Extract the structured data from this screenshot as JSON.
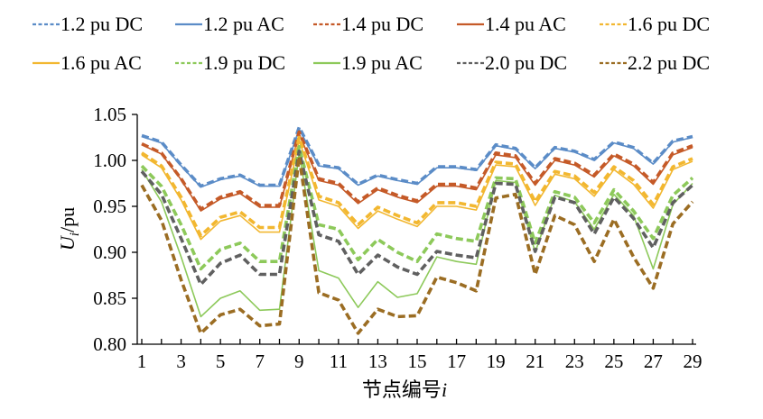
{
  "chart_data": {
    "type": "line",
    "xlabel": "节点编号i",
    "ylabel": "Ui/pu",
    "ylim": [
      0.8,
      1.05
    ],
    "xlim": [
      1,
      29
    ],
    "x": [
      1,
      2,
      3,
      4,
      5,
      6,
      7,
      8,
      9,
      10,
      11,
      12,
      13,
      14,
      15,
      16,
      17,
      18,
      19,
      20,
      21,
      22,
      23,
      24,
      25,
      26,
      27,
      28,
      29
    ],
    "xticks": [
      "1",
      "3",
      "5",
      "7",
      "9",
      "11",
      "13",
      "15",
      "17",
      "19",
      "21",
      "23",
      "25",
      "27",
      "29"
    ],
    "yticks": [
      "0.80",
      "0.85",
      "0.90",
      "0.95",
      "1.00",
      "1.05"
    ],
    "grid": false,
    "legend_position": "top",
    "series": [
      {
        "name": "1.2 pu DC",
        "style": "dashed",
        "color": "#5b8cc7",
        "values": [
          1.027,
          1.02,
          0.995,
          0.972,
          0.98,
          0.984,
          0.973,
          0.973,
          1.036,
          0.995,
          0.992,
          0.974,
          0.984,
          0.979,
          0.975,
          0.993,
          0.993,
          0.99,
          1.017,
          1.013,
          0.992,
          1.014,
          1.01,
          1.001,
          1.02,
          1.014,
          0.997,
          1.021,
          1.026
        ]
      },
      {
        "name": "1.2 pu AC",
        "style": "solid",
        "color": "#5b8cc7",
        "values": [
          1.026,
          1.019,
          0.994,
          0.971,
          0.979,
          0.983,
          0.972,
          0.972,
          1.034,
          0.994,
          0.991,
          0.973,
          0.983,
          0.978,
          0.974,
          0.992,
          0.992,
          0.989,
          1.016,
          1.012,
          0.991,
          1.013,
          1.009,
          1.0,
          1.019,
          1.013,
          0.996,
          1.02,
          1.025
        ]
      },
      {
        "name": "1.4 pu DC",
        "style": "dashed",
        "color": "#c55a28",
        "values": [
          1.018,
          1.008,
          0.98,
          0.947,
          0.96,
          0.966,
          0.951,
          0.951,
          1.031,
          0.98,
          0.975,
          0.955,
          0.97,
          0.962,
          0.956,
          0.974,
          0.974,
          0.97,
          1.008,
          1.005,
          0.975,
          1.002,
          0.997,
          0.984,
          1.007,
          0.996,
          0.976,
          1.008,
          1.016
        ]
      },
      {
        "name": "1.4 pu AC",
        "style": "solid",
        "color": "#c55a28",
        "values": [
          1.017,
          1.007,
          0.979,
          0.945,
          0.958,
          0.964,
          0.949,
          0.949,
          1.029,
          0.978,
          0.973,
          0.953,
          0.968,
          0.96,
          0.954,
          0.972,
          0.972,
          0.968,
          1.006,
          1.003,
          0.973,
          1.0,
          0.995,
          0.982,
          1.005,
          0.994,
          0.974,
          1.006,
          1.014
        ]
      },
      {
        "name": "1.6 pu DC",
        "style": "dashed",
        "color": "#f2b730",
        "values": [
          1.008,
          0.994,
          0.96,
          0.918,
          0.938,
          0.944,
          0.927,
          0.927,
          1.025,
          0.961,
          0.954,
          0.93,
          0.949,
          0.94,
          0.932,
          0.954,
          0.954,
          0.95,
          0.998,
          0.996,
          0.955,
          0.988,
          0.983,
          0.965,
          0.993,
          0.978,
          0.952,
          0.993,
          1.002
        ]
      },
      {
        "name": "1.6 pu AC",
        "style": "solid",
        "color": "#f2b730",
        "values": [
          1.006,
          0.992,
          0.957,
          0.914,
          0.934,
          0.94,
          0.922,
          0.922,
          1.022,
          0.957,
          0.95,
          0.926,
          0.945,
          0.936,
          0.928,
          0.95,
          0.95,
          0.946,
          0.995,
          0.993,
          0.951,
          0.985,
          0.98,
          0.961,
          0.99,
          0.974,
          0.948,
          0.99,
          0.999
        ]
      },
      {
        "name": "1.9 pu DC",
        "style": "dashed",
        "color": "#8dc95a",
        "values": [
          0.994,
          0.972,
          0.93,
          0.882,
          0.903,
          0.91,
          0.89,
          0.89,
          1.015,
          0.93,
          0.925,
          0.892,
          0.914,
          0.9,
          0.89,
          0.92,
          0.915,
          0.912,
          0.981,
          0.98,
          0.91,
          0.966,
          0.96,
          0.932,
          0.968,
          0.945,
          0.915,
          0.962,
          0.981
        ]
      },
      {
        "name": "1.9 pu AC",
        "style": "solid",
        "color": "#8dc95a",
        "values": [
          0.99,
          0.955,
          0.895,
          0.83,
          0.85,
          0.858,
          0.837,
          0.838,
          1.008,
          0.88,
          0.872,
          0.84,
          0.868,
          0.851,
          0.855,
          0.895,
          0.89,
          0.887,
          0.978,
          0.976,
          0.9,
          0.962,
          0.955,
          0.925,
          0.963,
          0.94,
          0.882,
          0.952,
          0.975
        ]
      },
      {
        "name": "2.0 pu DC",
        "style": "dashed",
        "color": "#606060",
        "values": [
          0.988,
          0.963,
          0.915,
          0.865,
          0.888,
          0.897,
          0.876,
          0.876,
          1.01,
          0.919,
          0.912,
          0.876,
          0.897,
          0.884,
          0.876,
          0.901,
          0.897,
          0.894,
          0.975,
          0.974,
          0.901,
          0.96,
          0.954,
          0.92,
          0.96,
          0.937,
          0.905,
          0.954,
          0.973
        ]
      },
      {
        "name": "2.2 pu DC",
        "style": "dashed",
        "color": "#9b6d23",
        "values": [
          0.973,
          0.935,
          0.87,
          0.812,
          0.832,
          0.838,
          0.82,
          0.822,
          1.004,
          0.856,
          0.848,
          0.812,
          0.838,
          0.83,
          0.831,
          0.873,
          0.867,
          0.858,
          0.959,
          0.963,
          0.876,
          0.94,
          0.93,
          0.89,
          0.936,
          0.895,
          0.861,
          0.931,
          0.955
        ]
      }
    ]
  }
}
